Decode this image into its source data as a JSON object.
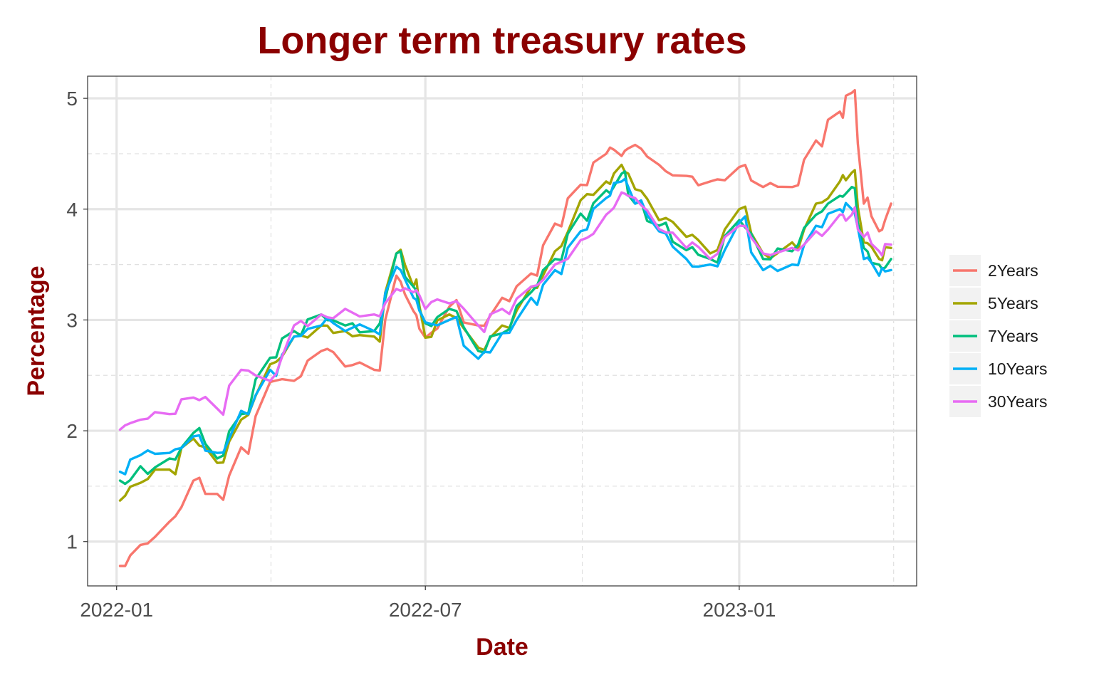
{
  "chart_data": {
    "type": "line",
    "title": "Longer term treasury rates",
    "xlabel": "Date",
    "ylabel": "Percentage",
    "x_ticks": [
      "2022-01",
      "2022-07",
      "2023-01"
    ],
    "y_ticks": [
      "1",
      "2",
      "3",
      "4",
      "5"
    ],
    "xlim": [
      "2021-12-15",
      "2023-04-15"
    ],
    "ylim": [
      0.6,
      5.2
    ],
    "grid": true,
    "legend_position": "right",
    "x": [
      "2022-01-03",
      "2022-01-15",
      "2022-02-01",
      "2022-02-15",
      "2022-03-01",
      "2022-03-15",
      "2022-04-01",
      "2022-04-15",
      "2022-05-01",
      "2022-05-15",
      "2022-06-01",
      "2022-06-14",
      "2022-06-24",
      "2022-07-01",
      "2022-07-15",
      "2022-08-01",
      "2022-08-15",
      "2022-09-01",
      "2022-09-15",
      "2022-09-30",
      "2022-10-15",
      "2022-10-24",
      "2022-11-01",
      "2022-11-15",
      "2022-12-01",
      "2022-12-15",
      "2023-01-01",
      "2023-01-15",
      "2023-02-01",
      "2023-02-15",
      "2023-03-01",
      "2023-03-08",
      "2023-03-15",
      "2023-03-24",
      "2023-03-31"
    ],
    "series": [
      {
        "name": "2Years",
        "color": "#F8766D",
        "values": [
          0.78,
          0.97,
          1.18,
          1.55,
          1.43,
          1.85,
          2.44,
          2.45,
          2.72,
          2.58,
          2.55,
          3.4,
          3.08,
          2.84,
          3.12,
          2.95,
          3.2,
          3.42,
          3.87,
          4.22,
          4.5,
          4.48,
          4.58,
          4.4,
          4.3,
          4.25,
          4.38,
          4.2,
          4.2,
          4.62,
          4.88,
          5.05,
          4.05,
          3.8,
          4.05
        ]
      },
      {
        "name": "5Years",
        "color": "#A3A500",
        "values": [
          1.37,
          1.53,
          1.65,
          1.93,
          1.71,
          2.1,
          2.6,
          2.85,
          2.95,
          2.9,
          2.85,
          3.6,
          3.3,
          2.84,
          3.05,
          2.75,
          2.95,
          3.3,
          3.62,
          4.08,
          4.25,
          4.4,
          4.18,
          3.9,
          3.75,
          3.6,
          4.0,
          3.6,
          3.7,
          4.05,
          4.25,
          4.33,
          3.7,
          3.55,
          3.65
        ]
      },
      {
        "name": "7Years",
        "color": "#00BF7D",
        "values": [
          1.55,
          1.68,
          1.75,
          1.98,
          1.75,
          2.15,
          2.66,
          2.9,
          3.05,
          2.95,
          2.9,
          3.6,
          3.3,
          2.97,
          3.1,
          2.72,
          2.88,
          3.25,
          3.55,
          3.96,
          4.17,
          4.32,
          4.05,
          3.85,
          3.63,
          3.55,
          3.9,
          3.55,
          3.62,
          3.95,
          4.12,
          4.2,
          3.65,
          3.5,
          3.55
        ]
      },
      {
        "name": "10Years",
        "color": "#00B0F6",
        "values": [
          1.63,
          1.78,
          1.8,
          1.95,
          1.8,
          2.18,
          2.55,
          2.85,
          2.95,
          2.9,
          2.9,
          3.48,
          3.2,
          2.98,
          3.0,
          2.65,
          2.88,
          3.2,
          3.45,
          3.8,
          4.1,
          4.25,
          4.05,
          3.8,
          3.55,
          3.5,
          3.88,
          3.45,
          3.5,
          3.85,
          4.0,
          4.0,
          3.55,
          3.4,
          3.45
        ]
      },
      {
        "name": "30Years",
        "color": "#E76BF3",
        "values": [
          2.01,
          2.1,
          2.15,
          2.3,
          2.2,
          2.55,
          2.45,
          2.95,
          3.05,
          3.1,
          3.05,
          3.28,
          3.25,
          3.1,
          3.15,
          2.95,
          3.1,
          3.3,
          3.5,
          3.72,
          3.95,
          4.15,
          4.1,
          3.82,
          3.65,
          3.55,
          3.85,
          3.6,
          3.65,
          3.8,
          3.95,
          3.95,
          3.75,
          3.62,
          3.68
        ]
      }
    ]
  }
}
